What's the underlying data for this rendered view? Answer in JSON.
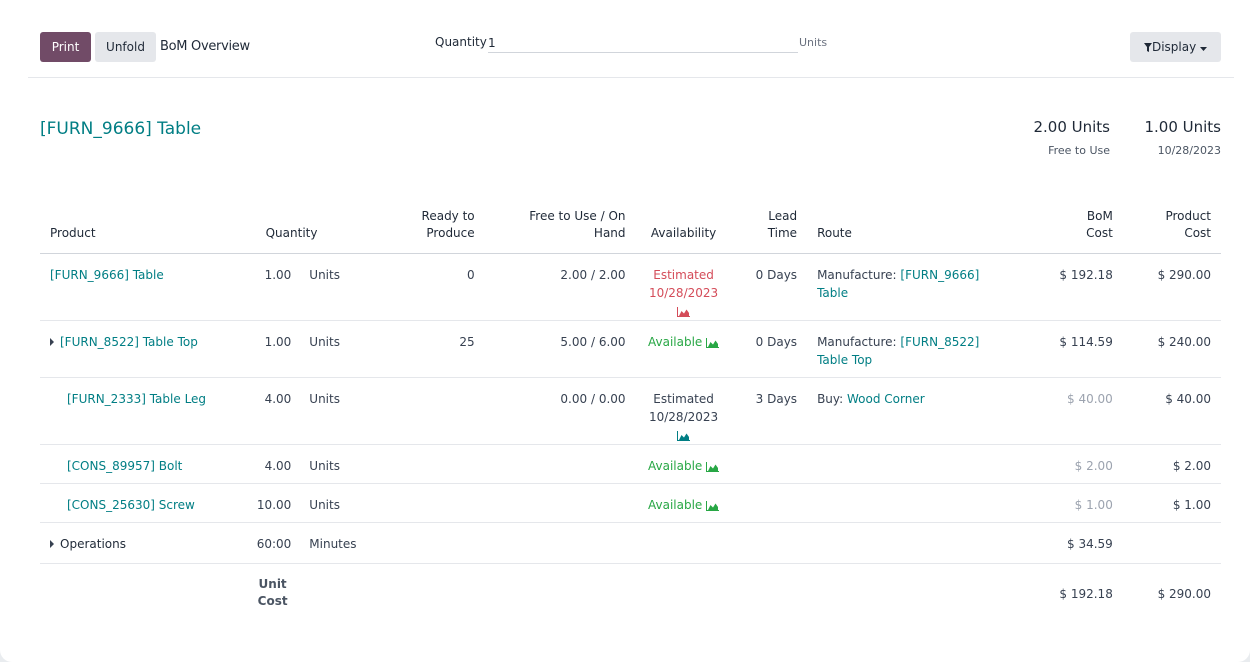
{
  "control_bar": {
    "print_label": "Print",
    "unfold_label": "Unfold",
    "view_title": "BoM Overview",
    "quantity_label": "Quantity",
    "quantity_value": "1",
    "quantity_unit": "Units",
    "display_label": "Display"
  },
  "product": {
    "title": "[FURN_9666] Table",
    "free_to_use_value": "2.00 Units",
    "free_to_use_label": "Free to Use",
    "forecast_value": "1.00 Units",
    "forecast_date": "10/28/2023"
  },
  "table": {
    "headers": {
      "product": "Product",
      "quantity": "Quantity",
      "ready_to_produce": [
        "Ready to",
        "Produce"
      ],
      "free_on_hand": [
        "Free to Use / On",
        "Hand"
      ],
      "availability": "Availability",
      "lead_time": [
        "Lead",
        "Time"
      ],
      "route": "Route",
      "bom_cost": [
        "BoM",
        "Cost"
      ],
      "product_cost": [
        "Product",
        "Cost"
      ]
    },
    "rows": [
      {
        "product": "[FURN_9666] Table",
        "qty": "1.00",
        "uom": "Units",
        "ready": "0",
        "free": "2.00 / 2.00",
        "availability": "Estimated 10/28/2023",
        "avail_color": "#d44c59",
        "lead": "0 Days",
        "route_prefix": "Manufacture: ",
        "route_link": "[FURN_9666] Table",
        "bom_cost": "$ 192.18",
        "prod_cost": "$ 290.00"
      },
      {
        "product": "[FURN_8522] Table Top",
        "qty": "1.00",
        "uom": "Units",
        "ready": "25",
        "free": "5.00 / 6.00",
        "availability": "Available",
        "avail_color": "#28a745",
        "lead": "0 Days",
        "route_prefix": "Manufacture: ",
        "route_link": "[FURN_8522] Table Top",
        "bom_cost": "$ 114.59",
        "prod_cost": "$ 240.00"
      },
      {
        "product": "[FURN_2333] Table Leg",
        "qty": "4.00",
        "uom": "Units",
        "ready": "",
        "free": "0.00 / 0.00",
        "availability": "Estimated 10/28/2023",
        "avail_color": "#017e84",
        "lead": "3 Days",
        "route_prefix": "Buy: ",
        "route_link": "Wood Corner",
        "bom_cost": "$ 40.00",
        "prod_cost": "$ 40.00"
      },
      {
        "product": "[CONS_89957] Bolt",
        "qty": "4.00",
        "uom": "Units",
        "availability": "Available",
        "avail_color": "#28a745",
        "bom_cost": "$ 2.00",
        "prod_cost": "$ 2.00"
      },
      {
        "product": "[CONS_25630] Screw",
        "qty": "10.00",
        "uom": "Units",
        "availability": "Available",
        "avail_color": "#28a745",
        "bom_cost": "$ 1.00",
        "prod_cost": "$ 1.00"
      },
      {
        "product": "Operations",
        "qty": "60:00",
        "uom": "Minutes",
        "bom_cost": "$ 34.59"
      }
    ],
    "footer": {
      "label": [
        "Unit",
        "Cost"
      ],
      "bom_cost": "$ 192.18",
      "prod_cost": "$ 290.00"
    }
  }
}
